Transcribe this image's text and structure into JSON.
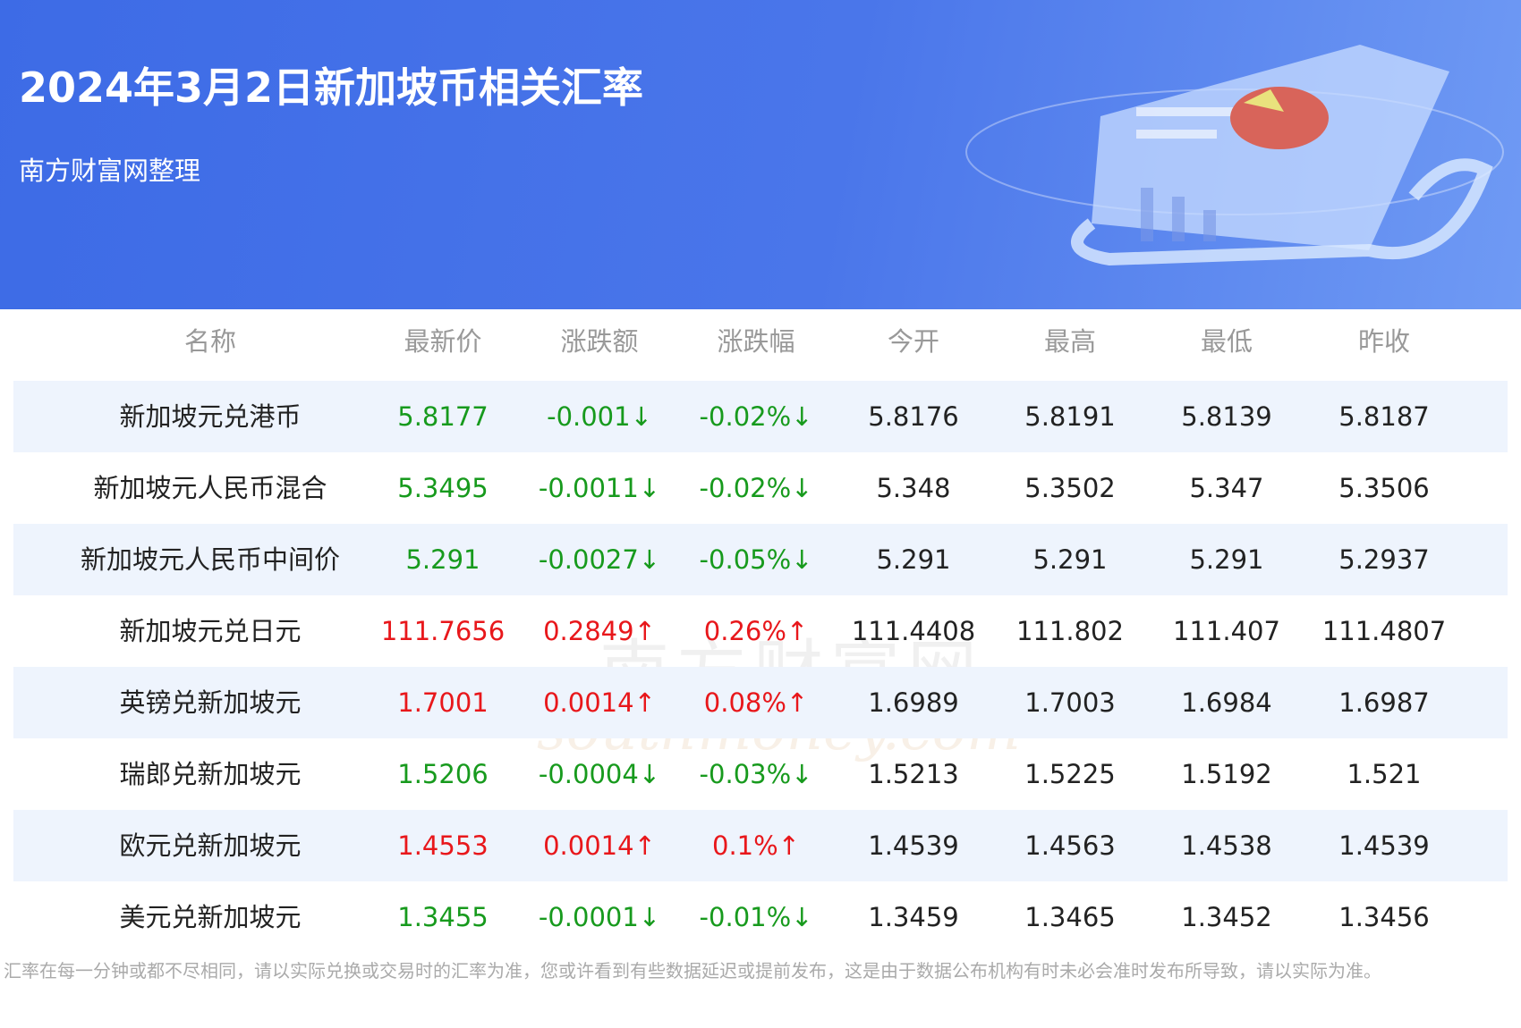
{
  "header": {
    "title": "2024年3月2日新加坡币相关汇率",
    "subtitle": "南方财富网整理"
  },
  "table": {
    "columns": [
      "名称",
      "最新价",
      "涨跌额",
      "涨跌幅",
      "今开",
      "最高",
      "最低",
      "昨收"
    ],
    "rows": [
      [
        "新加坡元兑港币",
        "5.8177",
        "-0.001↓",
        "-0.02%↓",
        "5.8176",
        "5.8191",
        "5.8139",
        "5.8187"
      ],
      [
        "新加坡元人民币混合",
        "5.3495",
        "-0.0011↓",
        "-0.02%↓",
        "5.348",
        "5.3502",
        "5.347",
        "5.3506"
      ],
      [
        "新加坡元人民币中间价",
        "5.291",
        "-0.0027↓",
        "-0.05%↓",
        "5.291",
        "5.291",
        "5.291",
        "5.2937"
      ],
      [
        "新加坡元兑日元",
        "111.7656",
        "0.2849↑",
        "0.26%↑",
        "111.4408",
        "111.802",
        "111.407",
        "111.4807"
      ],
      [
        "英镑兑新加坡元",
        "1.7001",
        "0.0014↑",
        "0.08%↑",
        "1.6989",
        "1.7003",
        "1.6984",
        "1.6987"
      ],
      [
        "瑞郎兑新加坡元",
        "1.5206",
        "-0.0004↓",
        "-0.03%↓",
        "1.5213",
        "1.5225",
        "1.5192",
        "1.521"
      ],
      [
        "欧元兑新加坡元",
        "1.4553",
        "0.0014↑",
        "0.1%↑",
        "1.4539",
        "1.4563",
        "1.4538",
        "1.4539"
      ],
      [
        "美元兑新加坡元",
        "1.3455",
        "-0.0001↓",
        "-0.01%↓",
        "1.3459",
        "1.3465",
        "1.3452",
        "1.3456"
      ]
    ]
  },
  "watermark": {
    "name": "南方财富网",
    "site": "southmoney.com"
  },
  "footer": {
    "note": "汇率在每一分钟或都不尽相同，请以实际兑换或交易时的汇率为准，您或许看到有些数据延迟或提前发布，这是由于数据公布机构有时未必会准时发布所导致，请以实际为准。"
  }
}
